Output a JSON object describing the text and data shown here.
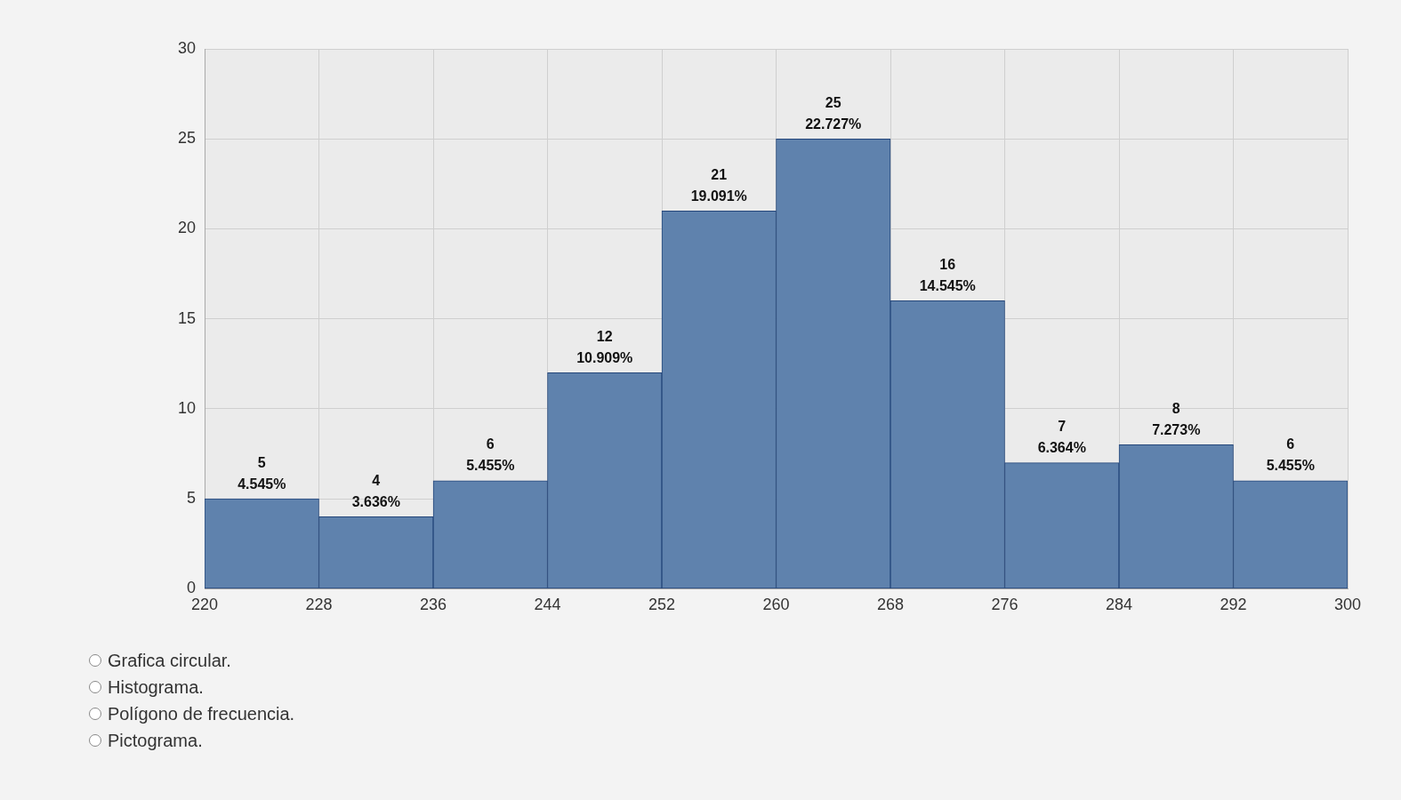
{
  "chart_data": {
    "type": "histogram",
    "bins": [
      220,
      228,
      236,
      244,
      252,
      260,
      268,
      276,
      284,
      292,
      300
    ],
    "values": [
      5,
      4,
      6,
      12,
      21,
      25,
      16,
      7,
      8,
      6
    ],
    "color": "#5f82ad",
    "value_labels": [
      "5\n4.545%",
      "4\n3.636%",
      "6\n5.455%",
      "12\n10.909%",
      "21\n19.091%",
      "25\n22.727%",
      "16\n14.545%",
      "7\n6.364%",
      "8\n7.273%",
      "6\n5.455%"
    ],
    "xlim": [
      220,
      300
    ],
    "xticks": [
      220,
      228,
      236,
      244,
      252,
      260,
      268,
      276,
      284,
      292,
      300
    ],
    "ylim": [
      0,
      30
    ],
    "yticks": [
      0,
      5,
      10,
      15,
      20,
      25,
      30
    ],
    "grid": true,
    "annotations": [
      "Grafica circular.",
      "Histograma.",
      "Polígono de frecuencia.",
      "Pictograma."
    ]
  }
}
